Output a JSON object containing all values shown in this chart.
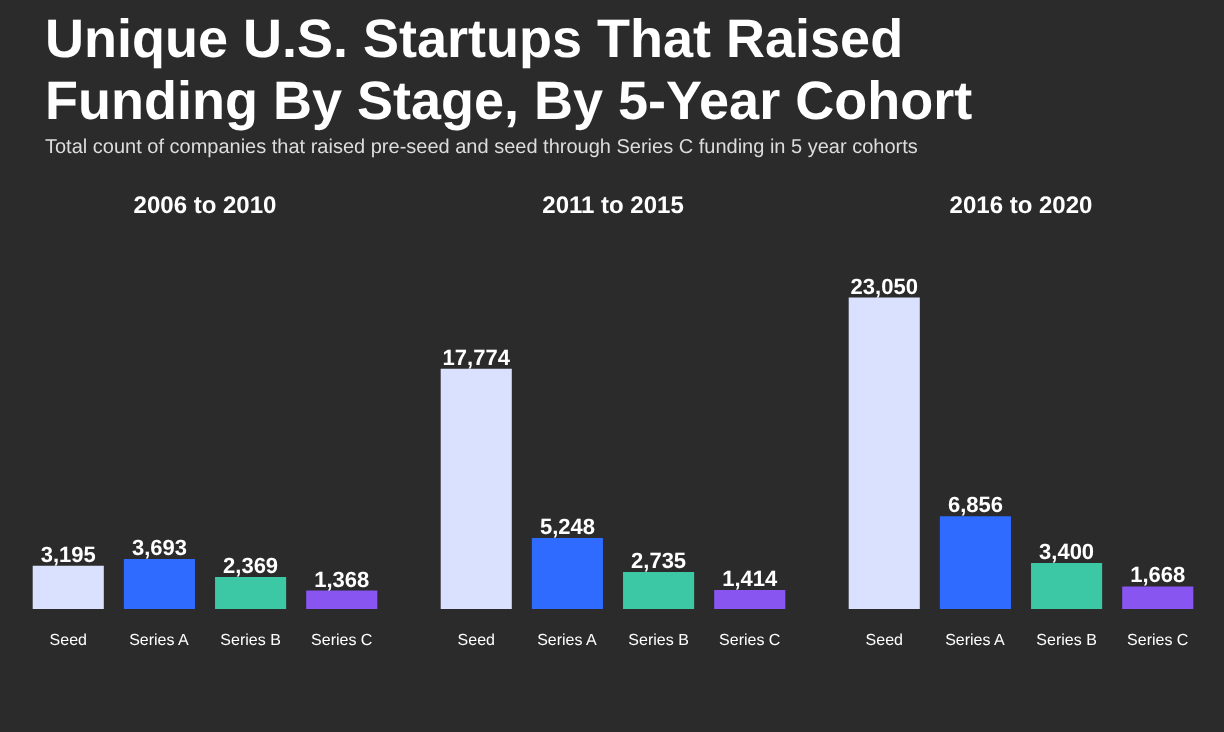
{
  "chart_data": [
    {
      "type": "other",
      "title": "Unique U.S. Startups That Raised Funding By Stage, By 5-Year Cohort",
      "subtitle": "Total count of companies that raised pre-seed and seed through Series C funding in 5 year cohorts"
    },
    {
      "type": "bar",
      "title": "2006 to 2010",
      "categories": [
        "Seed",
        "Series A",
        "Series B",
        "Series C"
      ],
      "values": [
        3195,
        3693,
        2369,
        1368
      ],
      "colors": [
        "#d9e1ff",
        "#2f6bff",
        "#3cc8a4",
        "#8855f0"
      ],
      "value_labels": [
        "3,195",
        "3,693",
        "2,369",
        "1,368"
      ]
    },
    {
      "type": "bar",
      "title": "2011 to 2015",
      "categories": [
        "Seed",
        "Series A",
        "Series B",
        "Series C"
      ],
      "values": [
        17774,
        5248,
        2735,
        1414
      ],
      "colors": [
        "#d9e1ff",
        "#2f6bff",
        "#3cc8a4",
        "#8855f0"
      ],
      "value_labels": [
        "17,774",
        "5,248",
        "2,735",
        "1,414"
      ]
    },
    {
      "type": "bar",
      "title": "2016 to 2020",
      "categories": [
        "Seed",
        "Series A",
        "Series B",
        "Series C"
      ],
      "values": [
        23050,
        6856,
        3400,
        1668
      ],
      "colors": [
        "#d9e1ff",
        "#2f6bff",
        "#3cc8a4",
        "#8855f0"
      ],
      "value_labels": [
        "23,050",
        "6,856",
        "3,400",
        "1,668"
      ]
    }
  ]
}
